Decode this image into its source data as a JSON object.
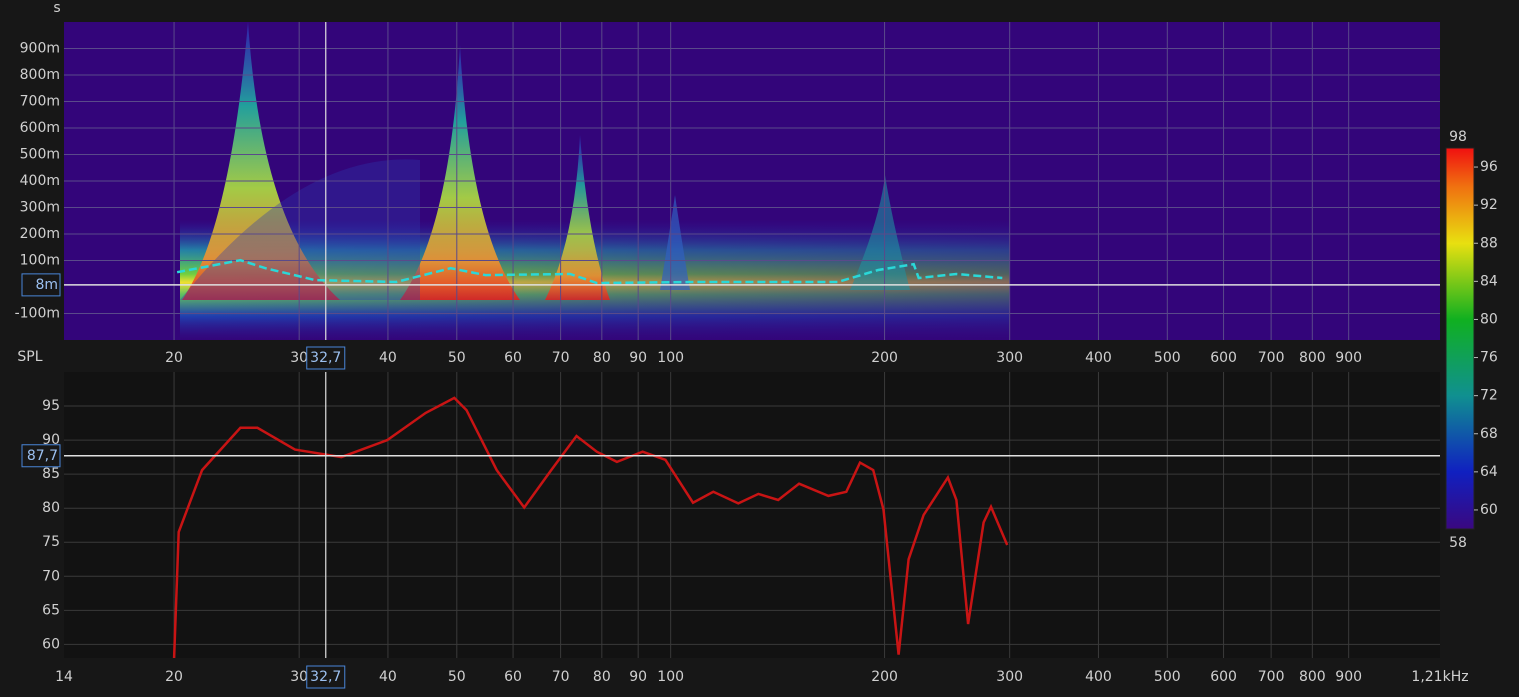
{
  "chart_data": [
    {
      "type": "spectrogram",
      "y_label": "s",
      "log_x": true,
      "grid": true,
      "x": [
        20.2,
        24.8,
        26.9,
        31.6,
        41.1,
        49.0,
        54.9,
        72.2,
        78.7,
        108.6,
        171.8,
        195.9,
        219.8,
        223.4,
        252.4,
        292.9
      ],
      "series": [
        {
          "color": "#2ad8d8",
          "values": [
            0.056,
            0.101,
            0.071,
            0.026,
            0.019,
            0.071,
            0.045,
            0.049,
            0.015,
            0.019,
            0.019,
            0.064,
            0.086,
            0.034,
            0.049,
            0.034
          ]
        }
      ],
      "xlim": [
        14,
        1210
      ],
      "ylim": [
        -0.2,
        1.0
      ],
      "xticks": [
        20,
        30,
        40,
        50,
        60,
        70,
        80,
        90,
        100,
        200,
        300,
        400,
        500,
        600,
        700,
        800,
        900
      ],
      "yticks": [
        {
          "value": 0.9,
          "label": "900m"
        },
        {
          "value": 0.8,
          "label": "800m"
        },
        {
          "value": 0.7,
          "label": "700m"
        },
        {
          "value": 0.6,
          "label": "600m"
        },
        {
          "value": 0.5,
          "label": "500m"
        },
        {
          "value": 0.4,
          "label": "400m"
        },
        {
          "value": 0.3,
          "label": "300m"
        },
        {
          "value": 0.2,
          "label": "200m"
        },
        {
          "value": 0.1,
          "label": "100m"
        },
        {
          "value": -0.1,
          "label": "-100m"
        }
      ],
      "cursor": {
        "x": {
          "value": 32.7,
          "label": "32,7"
        },
        "y": {
          "value": 0.008,
          "label": "8m"
        }
      },
      "colorbar": {
        "lim": [
          58,
          98
        ],
        "ticks": [
          60,
          64,
          68,
          72,
          76,
          80,
          84,
          88,
          92,
          96
        ]
      }
    },
    {
      "type": "line",
      "y_label": "SPL",
      "log_x": true,
      "grid": true,
      "x": [
        20.0,
        20.3,
        21.9,
        24.8,
        26.2,
        29.6,
        34.4,
        39.9,
        45.2,
        49.6,
        51.6,
        56.9,
        62.2,
        67.9,
        73.7,
        78.7,
        84.0,
        91.3,
        98.3,
        107.5,
        114.8,
        124.5,
        132.9,
        141.7,
        151.6,
        166.7,
        176.7,
        184.7,
        192.8,
        199.3,
        209.3,
        216.2,
        227.0,
        245.6,
        252.4,
        262.2,
        275.7,
        282.4,
        297.6
      ],
      "series": [
        {
          "color": "#c81414",
          "values": [
            58.0,
            76.5,
            85.6,
            91.8,
            91.8,
            88.6,
            87.5,
            90.0,
            94.0,
            96.2,
            94.4,
            85.6,
            80.1,
            85.6,
            90.6,
            88.3,
            86.8,
            88.3,
            87.1,
            80.8,
            82.4,
            80.7,
            82.1,
            81.2,
            83.6,
            81.8,
            82.4,
            86.7,
            85.6,
            79.8,
            58.5,
            72.5,
            79.0,
            84.5,
            81.2,
            63.0,
            77.9,
            80.2,
            74.6
          ]
        }
      ],
      "xlim": [
        14,
        1210
      ],
      "ylim": [
        58,
        100
      ],
      "xticks": [
        14,
        20,
        30,
        40,
        50,
        60,
        70,
        80,
        90,
        100,
        200,
        300,
        400,
        500,
        600,
        700,
        800,
        900,
        {
          "value": 1210,
          "label": "1,21kHz"
        }
      ],
      "yticks": [
        60,
        65,
        70,
        75,
        80,
        85,
        90,
        95
      ],
      "cursor": {
        "x": {
          "value": 32.7,
          "label": "32,7"
        },
        "y": {
          "value": 87.7,
          "label": "87,7"
        }
      }
    }
  ]
}
